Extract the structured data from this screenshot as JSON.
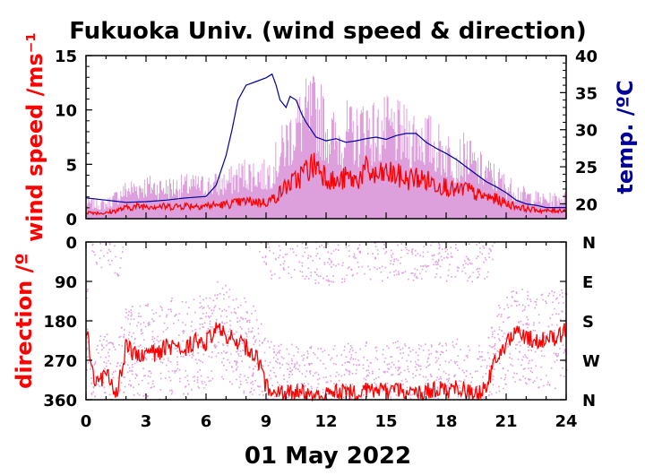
{
  "chart_data": [
    {
      "type": "line",
      "title": "Fukuoka Univ. (wind speed & direction)",
      "ylabel": "wind speed /ms⁻¹",
      "y2label": "temp. /ºC",
      "xlim": [
        0,
        24
      ],
      "ylim": [
        0,
        15
      ],
      "y2lim": [
        18,
        40
      ],
      "x_ticks": [
        "0",
        "3",
        "6",
        "9",
        "12",
        "15",
        "18",
        "21",
        "24"
      ],
      "y_ticks": [
        "0",
        "5",
        "10",
        "15"
      ],
      "y2_ticks": [
        "20",
        "25",
        "30",
        "35",
        "40"
      ],
      "colors": {
        "wind_mean": "#ff0000",
        "wind_gust": "#dda0dd",
        "temperature": "#00009a"
      },
      "series": [
        {
          "name": "",
          "role": "temperature",
          "x": [
            0,
            1,
            2,
            3,
            4,
            5,
            6,
            6.5,
            7,
            7.3,
            7.6,
            8,
            8.5,
            9,
            9.3,
            9.5,
            9.7,
            10,
            10.2,
            10.5,
            10.8,
            11,
            11.5,
            12,
            12.5,
            13,
            13.5,
            14,
            14.5,
            15,
            15.5,
            16,
            16.5,
            17,
            17.5,
            18,
            18.5,
            19,
            19.5,
            20,
            20.5,
            21,
            21.5,
            22,
            22.5,
            23,
            23.5,
            24
          ],
          "values": [
            20.8,
            20.5,
            20.2,
            20.3,
            20.5,
            20.8,
            21.0,
            22.5,
            26.5,
            30.0,
            34.0,
            36.0,
            36.5,
            37.0,
            37.5,
            36.0,
            34.0,
            33.0,
            34.5,
            34.0,
            32.0,
            31.0,
            29.0,
            28.5,
            28.8,
            28.3,
            28.5,
            28.8,
            29.0,
            28.7,
            29.2,
            29.5,
            29.5,
            28.3,
            27.5,
            26.8,
            26.0,
            25.0,
            24.0,
            23.0,
            22.3,
            21.5,
            20.5,
            20.0,
            19.8,
            19.5,
            19.5,
            19.5
          ]
        },
        {
          "name": "",
          "role": "wind_mean",
          "x": [
            0,
            1,
            2,
            3,
            4,
            5,
            6,
            7,
            8,
            9,
            9.5,
            10,
            10.5,
            11,
            11.5,
            12,
            12.5,
            13,
            13.5,
            14,
            14.5,
            15,
            15.5,
            16,
            16.5,
            17,
            17.5,
            18,
            18.5,
            19,
            19.5,
            20,
            20.5,
            21,
            22,
            23,
            24
          ],
          "values": [
            0.6,
            0.5,
            1.0,
            1.2,
            1.1,
            1.2,
            1.2,
            1.3,
            1.6,
            1.5,
            2.0,
            3.0,
            3.5,
            4.5,
            5.0,
            4.0,
            3.2,
            3.8,
            3.5,
            4.5,
            3.8,
            4.2,
            4.0,
            3.6,
            3.8,
            3.5,
            3.2,
            3.0,
            2.5,
            2.8,
            2.2,
            2.0,
            1.8,
            1.4,
            0.9,
            0.7,
            0.8
          ]
        },
        {
          "name": "",
          "role": "wind_gust",
          "x": [
            0,
            1,
            2,
            3,
            4,
            5,
            6,
            7,
            8,
            9,
            9.5,
            10,
            10.5,
            11,
            11.5,
            12,
            12.5,
            13,
            13.5,
            14,
            14.5,
            15,
            15.5,
            16,
            16.5,
            17,
            17.5,
            18,
            18.5,
            19,
            19.5,
            20,
            20.5,
            21,
            22,
            23,
            24
          ],
          "values": [
            1.5,
            1.4,
            2.8,
            3.2,
            3.0,
            3.2,
            3.2,
            3.5,
            4.5,
            4.2,
            5.5,
            7.5,
            9.0,
            10.0,
            10.5,
            9.0,
            7.5,
            8.5,
            8.0,
            9.5,
            8.2,
            8.8,
            8.5,
            8.0,
            8.2,
            7.8,
            7.0,
            6.5,
            5.8,
            6.2,
            5.0,
            4.5,
            4.0,
            3.2,
            2.2,
            1.8,
            2.0
          ]
        }
      ]
    },
    {
      "type": "scatter",
      "ylabel": "direction /º",
      "xlabel": "01 May 2022",
      "xlim": [
        0,
        24
      ],
      "ylim": [
        360,
        0
      ],
      "x_ticks": [
        "0",
        "3",
        "6",
        "9",
        "12",
        "15",
        "18",
        "21",
        "24"
      ],
      "y_ticks": [
        "0",
        "90",
        "180",
        "270",
        "360"
      ],
      "y2_ticks": [
        "N",
        "E",
        "S",
        "W",
        "N"
      ],
      "series": [
        {
          "name": "",
          "role": "mean_direction",
          "x": [
            0,
            0.5,
            1,
            1.5,
            2,
            2.5,
            3,
            3.5,
            4,
            4.5,
            5,
            5.5,
            6,
            6.5,
            7,
            7.5,
            8,
            8.5,
            9,
            9.5,
            10,
            10.5,
            11,
            11.5,
            12,
            12.5,
            13,
            13.5,
            14,
            14.5,
            15,
            15.5,
            16,
            16.5,
            17,
            17.5,
            18,
            18.5,
            19,
            19.5,
            20,
            20.5,
            21,
            21.5,
            22,
            22.5,
            23,
            23.5,
            24
          ],
          "values": [
            200,
            330,
            300,
            350,
            240,
            260,
            250,
            255,
            240,
            235,
            240,
            225,
            230,
            200,
            210,
            230,
            240,
            255,
            330,
            340,
            345,
            340,
            345,
            350,
            350,
            345,
            340,
            345,
            335,
            340,
            340,
            335,
            345,
            345,
            340,
            335,
            340,
            330,
            340,
            345,
            335,
            260,
            230,
            210,
            215,
            230,
            220,
            225,
            200
          ]
        }
      ]
    }
  ]
}
